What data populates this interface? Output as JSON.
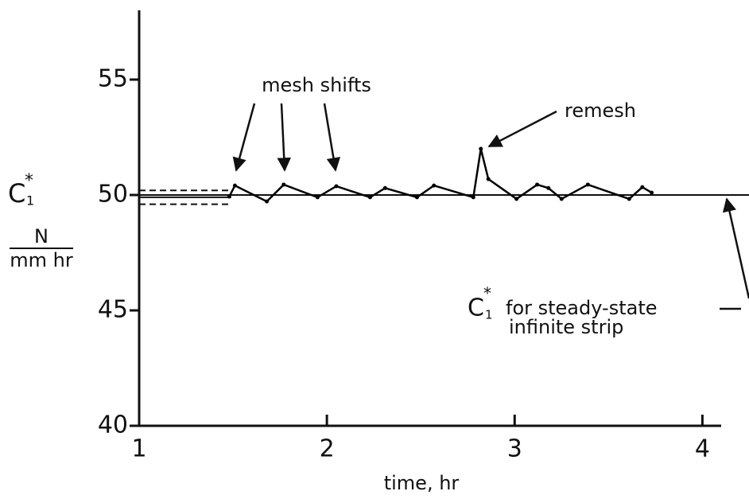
{
  "chart_data": {
    "type": "line",
    "x_label": "time, hr",
    "y_label": {
      "symbol": "C",
      "subscript": "1",
      "superscript": "*",
      "unit_numerator": "N",
      "unit_denominator": "mm hr"
    },
    "xlim": [
      1,
      4.1
    ],
    "ylim": [
      40,
      58
    ],
    "xticks": [
      1,
      2,
      3,
      4
    ],
    "yticks": [
      40,
      45,
      50,
      55
    ],
    "series": [
      {
        "color": "#000000",
        "x": [
          1.48,
          1.51,
          1.68,
          1.77,
          1.95,
          2.05,
          2.23,
          2.31,
          2.48,
          2.57,
          2.78,
          2.82,
          2.86,
          3.01,
          3.12,
          3.18,
          3.25,
          3.39,
          3.61,
          3.68,
          3.73
        ],
        "values": [
          49.93,
          50.41,
          49.72,
          50.45,
          49.9,
          50.38,
          49.9,
          50.3,
          49.9,
          50.41,
          49.9,
          52.0,
          50.69,
          49.83,
          50.45,
          50.3,
          49.83,
          50.45,
          49.83,
          50.34,
          50.1
        ]
      }
    ],
    "reference_lines": [
      {
        "y": 50.2,
        "x": [
          1,
          1.49
        ],
        "style": "dashed"
      },
      {
        "y": 49.9,
        "x": [
          1,
          1.49
        ],
        "style": "solid"
      },
      {
        "y": 49.6,
        "x": [
          1,
          1.49
        ],
        "style": "dashed"
      },
      {
        "y": 50,
        "x": [
          1,
          4.1
        ],
        "style": "solid"
      }
    ],
    "annotations": {
      "mesh_shifts": "mesh shifts",
      "remesh": "remesh",
      "steady_state": {
        "symbol": "C",
        "subscript": "1",
        "superscript": "*",
        "line1": "for steady-state",
        "line2": "infinite strip"
      }
    }
  }
}
